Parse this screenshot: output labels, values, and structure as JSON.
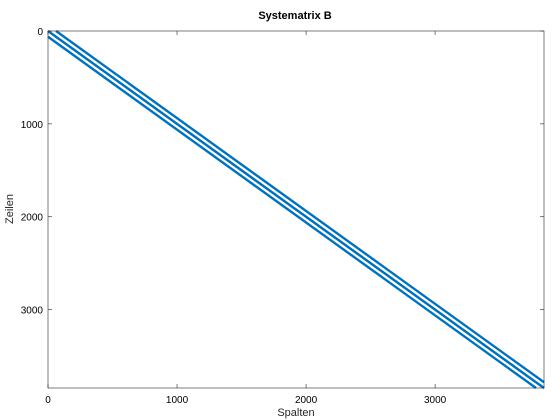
{
  "chart_data": {
    "type": "spy",
    "title": "Systematrix B",
    "xlabel": "Spalten",
    "ylabel": "Zeilen",
    "xlim": [
      0,
      3844
    ],
    "ylim": [
      3844,
      0
    ],
    "y_axis_reversed": true,
    "xticks": [
      0,
      1000,
      2000,
      3000
    ],
    "xtick_labels": [
      "0",
      "1000",
      "2000",
      "3000"
    ],
    "yticks": [
      0,
      1000,
      2000,
      3000
    ],
    "ytick_labels": [
      "0",
      "1000",
      "2000",
      "3000"
    ],
    "matrix_size": [
      3844,
      3844
    ],
    "nonzero_diagonal_offsets": [
      -62,
      -1,
      0,
      1,
      62
    ],
    "grid": false,
    "color": "#0072bd"
  }
}
